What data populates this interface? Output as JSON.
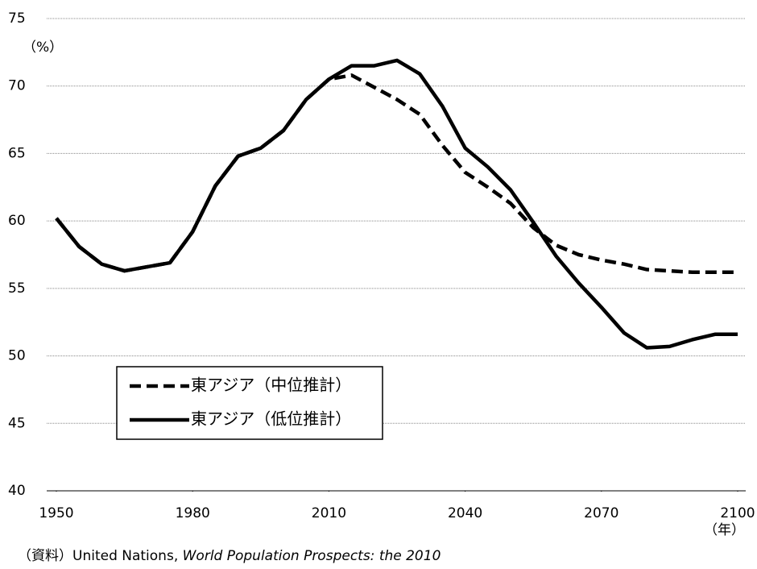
{
  "chart_data": {
    "type": "line",
    "y_unit_label": "（%）",
    "x_unit_label": "（年）",
    "source": {
      "prefix": "（資料）United Nations, ",
      "italic": "World Population Prospects: the 2010"
    },
    "x": [
      1950,
      1955,
      1960,
      1965,
      1970,
      1975,
      1980,
      1985,
      1990,
      1995,
      2000,
      2005,
      2010,
      2015,
      2020,
      2025,
      2030,
      2035,
      2040,
      2045,
      2050,
      2055,
      2060,
      2065,
      2070,
      2075,
      2080,
      2085,
      2090,
      2095,
      2100
    ],
    "series": [
      {
        "name": "東アジア（中位推計）",
        "color": "#000000",
        "dash": true,
        "values": [
          60.2,
          58.1,
          56.8,
          56.3,
          56.6,
          56.9,
          59.2,
          62.6,
          64.8,
          65.4,
          66.7,
          69.0,
          70.5,
          70.8,
          69.9,
          69.0,
          67.9,
          65.6,
          63.6,
          62.5,
          61.3,
          59.5,
          58.2,
          57.5,
          57.1,
          56.8,
          56.4,
          56.3,
          56.2,
          56.2,
          56.2
        ]
      },
      {
        "name": "東アジア（低位推計）",
        "color": "#000000",
        "dash": false,
        "values": [
          60.2,
          58.1,
          56.8,
          56.3,
          56.6,
          56.9,
          59.2,
          62.6,
          64.8,
          65.4,
          66.7,
          69.0,
          70.5,
          71.5,
          71.5,
          71.9,
          70.9,
          68.5,
          65.4,
          64.0,
          62.3,
          59.9,
          57.4,
          55.4,
          53.6,
          51.7,
          50.6,
          50.7,
          51.2,
          51.6,
          51.6
        ]
      }
    ],
    "xlim": [
      1950,
      2100
    ],
    "xticks": [
      1950,
      1980,
      2010,
      2040,
      2070,
      2100
    ],
    "ylim": [
      40,
      75
    ],
    "yticks": [
      40,
      45,
      50,
      55,
      60,
      65,
      70,
      75
    ],
    "grid": true,
    "legend": "lower left"
  }
}
